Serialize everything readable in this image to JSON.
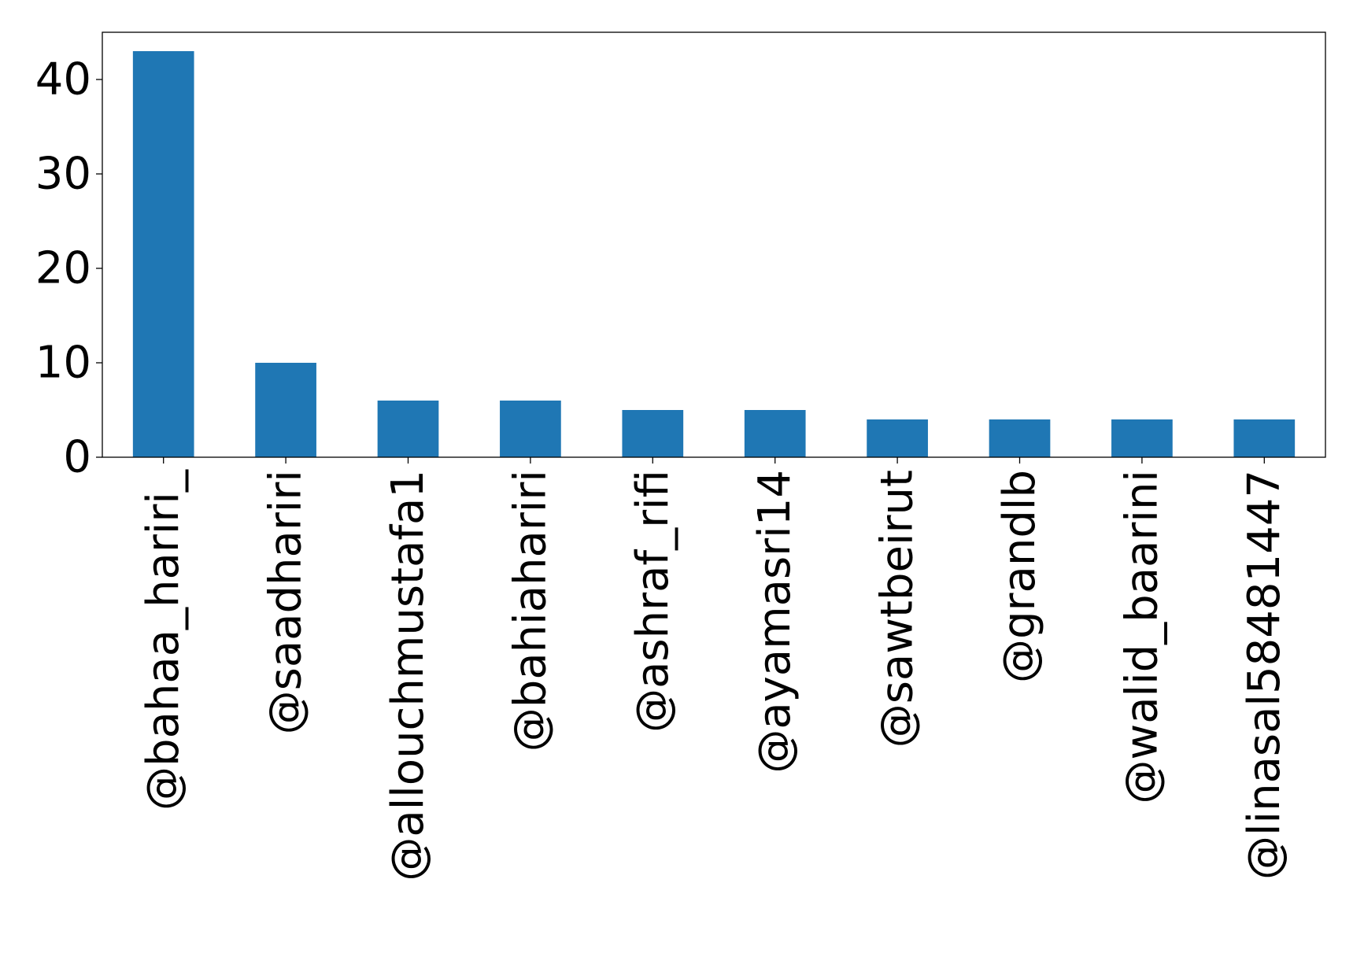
{
  "chart_data": {
    "type": "bar",
    "title": "",
    "xlabel": "",
    "ylabel": "",
    "categories": [
      "@bahaa_hariri_",
      "@saadhariri",
      "@allouchmustafa1",
      "@bahiahariri",
      "@ashraf_rifi",
      "@ayamasri14",
      "@sawtbeirut",
      "@grandlb",
      "@walid_baarini",
      "@linasal58481447"
    ],
    "values": [
      43,
      10,
      6,
      6,
      5,
      5,
      4,
      4,
      4,
      4
    ],
    "ylim": [
      0,
      45
    ],
    "yticks": [
      0,
      10,
      20,
      30,
      40
    ],
    "ytick_labels": [
      "0",
      "10",
      "20",
      "30",
      "40"
    ],
    "grid": false,
    "legend": "none",
    "bar_color": "#1f77b4"
  }
}
